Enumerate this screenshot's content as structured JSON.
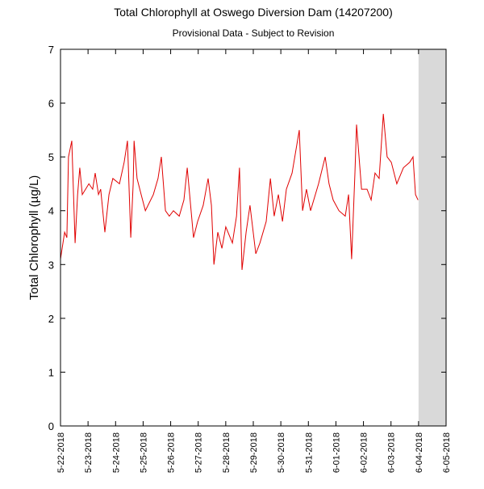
{
  "chart_data": {
    "type": "line",
    "title": "Total Chlorophyll at Oswego Diversion Dam (14207200)",
    "subtitle": "Provisional Data - Subject to Revision",
    "y_label": "Total Chlorophyll (µg/L)",
    "xlim": [
      0,
      14
    ],
    "ylim": [
      0,
      7
    ],
    "yticks": [
      0,
      1,
      2,
      3,
      4,
      5,
      6,
      7
    ],
    "xticks": [
      {
        "value": 0,
        "label": "5-22-2018"
      },
      {
        "value": 1,
        "label": "5-23-2018"
      },
      {
        "value": 2,
        "label": "5-24-2018"
      },
      {
        "value": 3,
        "label": "5-25-2018"
      },
      {
        "value": 4,
        "label": "5-26-2018"
      },
      {
        "value": 5,
        "label": "5-27-2018"
      },
      {
        "value": 6,
        "label": "5-28-2018"
      },
      {
        "value": 7,
        "label": "5-29-2018"
      },
      {
        "value": 8,
        "label": "5-30-2018"
      },
      {
        "value": 9,
        "label": "5-31-2018"
      },
      {
        "value": 10,
        "label": "6-01-2018"
      },
      {
        "value": 11,
        "label": "6-02-2018"
      },
      {
        "value": 12,
        "label": "6-03-2018"
      },
      {
        "value": 13,
        "label": "6-04-2018"
      },
      {
        "value": 14,
        "label": "6-05-2018"
      }
    ],
    "x": [
      0,
      0.15,
      0.23,
      0.29,
      0.41,
      0.53,
      0.62,
      0.7,
      0.79,
      1.03,
      1.17,
      1.26,
      1.38,
      1.46,
      1.61,
      1.76,
      1.9,
      2.14,
      2.31,
      2.43,
      2.55,
      2.64,
      2.67,
      2.78,
      2.93,
      3.08,
      3.37,
      3.54,
      3.66,
      3.81,
      3.95,
      4.1,
      4.31,
      4.48,
      4.6,
      4.83,
      4.98,
      5.18,
      5.36,
      5.48,
      5.57,
      5.71,
      5.86,
      6.0,
      6.24,
      6.39,
      6.5,
      6.59,
      6.74,
      6.88,
      7.09,
      7.24,
      7.47,
      7.62,
      7.76,
      7.91,
      8.06,
      8.2,
      8.41,
      8.67,
      8.79,
      8.93,
      9.08,
      9.37,
      9.61,
      9.75,
      9.9,
      10.11,
      10.34,
      10.46,
      10.57,
      10.69,
      10.75,
      10.93,
      11.13,
      11.28,
      11.42,
      11.57,
      11.72,
      11.86,
      12.01,
      12.21,
      12.45,
      12.68,
      12.8,
      12.89,
      12.98
    ],
    "series": [
      {
        "color": "#e00000",
        "values": [
          3.1,
          3.6,
          3.5,
          5.0,
          5.3,
          3.4,
          4.3,
          4.8,
          4.3,
          4.5,
          4.4,
          4.7,
          4.3,
          4.4,
          3.6,
          4.3,
          4.6,
          4.5,
          4.9,
          5.3,
          3.5,
          4.5,
          5.3,
          4.6,
          4.3,
          4.0,
          4.3,
          4.6,
          5.0,
          4.0,
          3.9,
          4.0,
          3.9,
          4.2,
          4.8,
          3.5,
          3.8,
          4.1,
          4.6,
          4.1,
          3.0,
          3.6,
          3.3,
          3.7,
          3.4,
          3.9,
          4.8,
          2.9,
          3.6,
          4.1,
          3.2,
          3.4,
          3.8,
          4.6,
          3.9,
          4.3,
          3.8,
          4.4,
          4.7,
          5.5,
          4.0,
          4.4,
          4.0,
          4.5,
          5.0,
          4.5,
          4.2,
          4.0,
          3.9,
          4.3,
          3.1,
          4.7,
          5.6,
          4.4,
          4.4,
          4.2,
          4.7,
          4.6,
          5.8,
          5.0,
          4.9,
          4.5,
          4.8,
          4.9,
          5.0,
          4.3,
          4.2
        ]
      }
    ]
  }
}
